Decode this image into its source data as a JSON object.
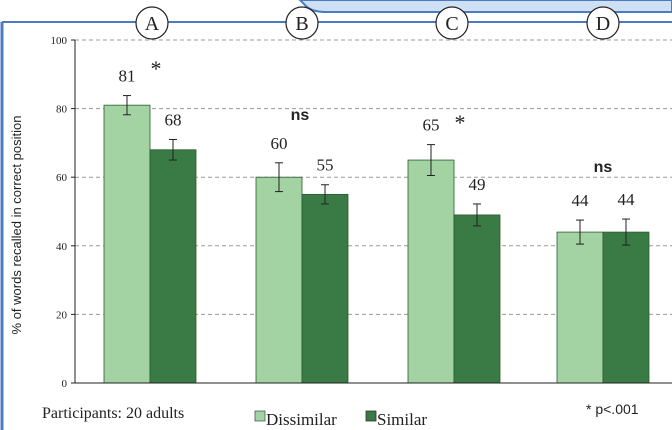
{
  "chart_data": {
    "type": "bar",
    "ylabel": "% of words recalled in correct position",
    "ylim": [
      0,
      100
    ],
    "yticks": [
      0,
      20,
      40,
      60,
      80,
      100
    ],
    "grid": true,
    "categories": [
      "A",
      "B",
      "C",
      "D"
    ],
    "series": [
      {
        "name": "Dissimilar",
        "color": "#a3d2a3",
        "values": [
          81,
          60,
          65,
          44
        ],
        "errors": [
          2.8,
          4.2,
          4.5,
          3.5
        ]
      },
      {
        "name": "Similar",
        "color": "#3a7a45",
        "values": [
          68,
          55,
          49,
          44
        ],
        "errors": [
          3.0,
          2.8,
          3.2,
          3.8
        ]
      }
    ],
    "value_labels": [
      [
        "81",
        "60",
        "65",
        "44"
      ],
      [
        "68",
        "55",
        "49",
        "44"
      ]
    ],
    "significance": [
      "*",
      "ns",
      "*",
      "ns"
    ],
    "legend": [
      "Dissimilar",
      "Similar"
    ],
    "legend_position": "bottom-center"
  },
  "footer": {
    "participants": "Participants: 20 adults",
    "pnote": "* p<.001"
  },
  "colors": {
    "frame": "#4a7cc4",
    "banner_fill": "#cfe0f4",
    "circle_fill": "#ffffff"
  }
}
